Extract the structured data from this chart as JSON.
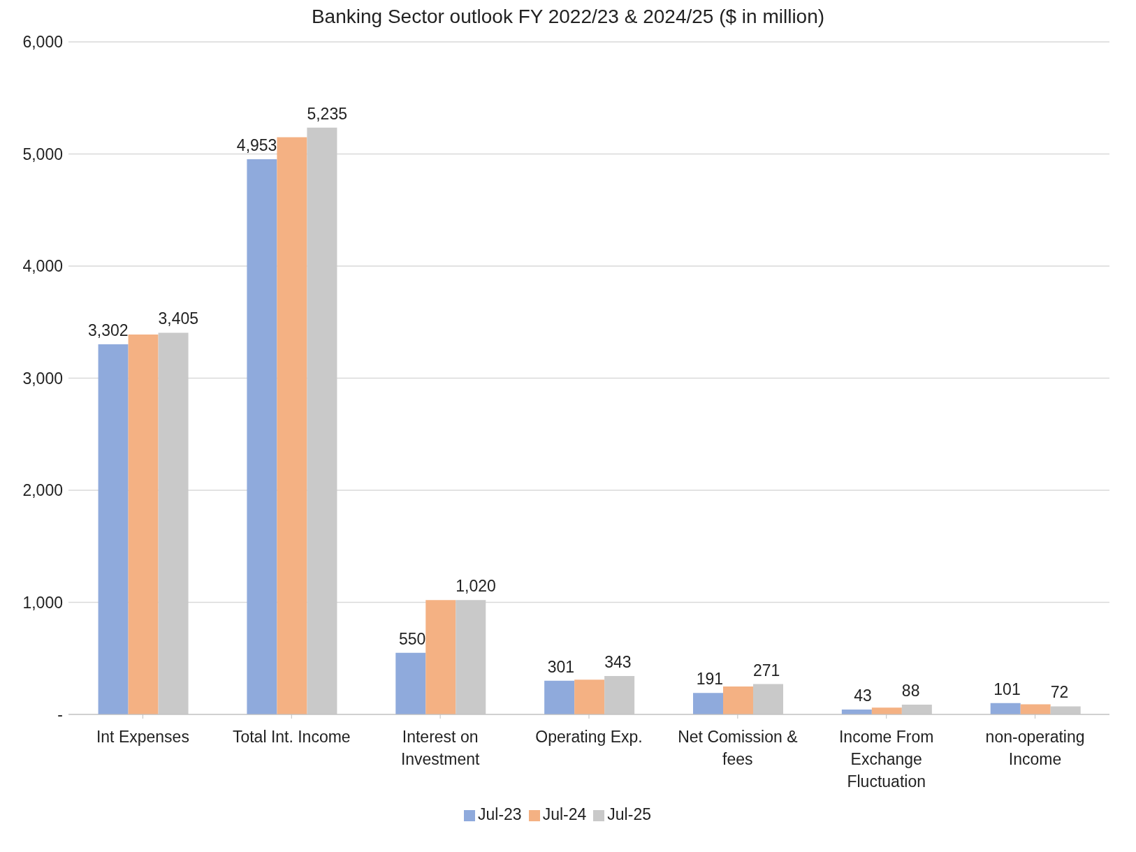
{
  "chart_data": {
    "type": "bar",
    "title": "Banking Sector outlook FY 2022/23 & 2024/25 ($ in million)",
    "categories": [
      "Int Expenses",
      "Total Int. Income",
      "Interest on Investment",
      "Operating Exp.",
      "Net Comission & fees",
      "Income From Exchange Fluctuation",
      "non-operating Income"
    ],
    "series": [
      {
        "name": "Jul-23",
        "color": "#8faadc",
        "values": [
          3302,
          4953,
          550,
          301,
          191,
          43,
          101
        ],
        "value_labels": [
          "3,302",
          "4,953",
          "550",
          "301",
          "191",
          "43",
          "101"
        ]
      },
      {
        "name": "Jul-24",
        "color": "#f4b183",
        "values": [
          3390,
          5150,
          1020,
          310,
          250,
          60,
          90
        ]
      },
      {
        "name": "Jul-25",
        "color": "#c9c9c9",
        "values": [
          3405,
          5235,
          1020,
          343,
          271,
          88,
          72
        ],
        "value_labels": [
          "3,405",
          "5,235",
          "1,020",
          "343",
          "271",
          "88",
          "72"
        ]
      }
    ],
    "ylim": [
      0,
      6000
    ],
    "yticks": [
      {
        "value": 0,
        "label": "-"
      },
      {
        "value": 1000,
        "label": "1,000"
      },
      {
        "value": 2000,
        "label": "2,000"
      },
      {
        "value": 3000,
        "label": "3,000"
      },
      {
        "value": 4000,
        "label": "4,000"
      },
      {
        "value": 5000,
        "label": "5,000"
      },
      {
        "value": 6000,
        "label": "6,000"
      }
    ],
    "grid": "y",
    "legend": "bottom"
  }
}
